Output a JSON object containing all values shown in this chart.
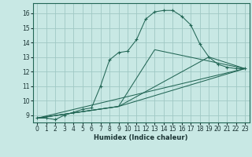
{
  "title": "",
  "xlabel": "Humidex (Indice chaleur)",
  "xlim": [
    -0.5,
    23.5
  ],
  "ylim": [
    8.5,
    16.7
  ],
  "xticks": [
    0,
    1,
    2,
    3,
    4,
    5,
    6,
    7,
    8,
    9,
    10,
    11,
    12,
    13,
    14,
    15,
    16,
    17,
    18,
    19,
    20,
    21,
    22,
    23
  ],
  "yticks": [
    9,
    10,
    11,
    12,
    13,
    14,
    15,
    16
  ],
  "background_color": "#c8e8e4",
  "grid_color": "#a0c8c4",
  "line_color": "#226655",
  "main_line": {
    "x": [
      0,
      1,
      2,
      3,
      4,
      5,
      6,
      7,
      8,
      9,
      10,
      11,
      12,
      13,
      14,
      15,
      16,
      17,
      18,
      19,
      20,
      21,
      22,
      23
    ],
    "y": [
      8.8,
      8.8,
      8.7,
      9.0,
      9.2,
      9.4,
      9.5,
      11.0,
      12.8,
      13.3,
      13.4,
      14.2,
      15.6,
      16.1,
      16.2,
      16.2,
      15.8,
      15.2,
      13.9,
      13.0,
      12.5,
      12.3,
      12.2,
      12.2
    ]
  },
  "fan_lines": [
    {
      "x": [
        0,
        23
      ],
      "y": [
        8.8,
        12.2
      ]
    },
    {
      "x": [
        0,
        9,
        23
      ],
      "y": [
        8.8,
        9.6,
        12.2
      ]
    },
    {
      "x": [
        0,
        9,
        19,
        23
      ],
      "y": [
        8.8,
        9.6,
        13.0,
        12.2
      ]
    },
    {
      "x": [
        0,
        9,
        13,
        23
      ],
      "y": [
        8.8,
        9.6,
        13.5,
        12.2
      ]
    }
  ]
}
